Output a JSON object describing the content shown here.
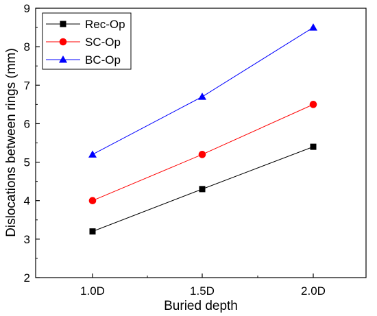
{
  "chart_data": {
    "type": "line",
    "categories": [
      "1.0D",
      "1.5D",
      "2.0D"
    ],
    "xlabel": "Buried depth",
    "ylabel": "Dislocations between rings (mm)",
    "ylim": [
      2,
      9
    ],
    "yticks": [
      2,
      3,
      4,
      5,
      6,
      7,
      8,
      9
    ],
    "grid": false,
    "legend_position": "top-left",
    "series": [
      {
        "name": "Rec-Op",
        "values": [
          3.2,
          4.3,
          5.4
        ],
        "color": "#000000",
        "marker": "square"
      },
      {
        "name": "SC-Op",
        "values": [
          4.0,
          5.2,
          6.5
        ],
        "color": "#ff0000",
        "marker": "circle"
      },
      {
        "name": "BC-Op",
        "values": [
          5.2,
          6.7,
          8.5
        ],
        "color": "#0000ff",
        "marker": "triangle"
      }
    ]
  }
}
